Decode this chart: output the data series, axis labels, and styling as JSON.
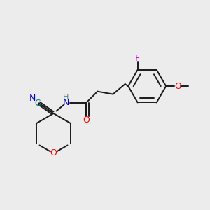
{
  "background_color": "#ececec",
  "bond_color": "#1a1a1a",
  "atom_colors": {
    "N": "#0000cc",
    "O": "#ff0000",
    "F": "#cc00cc",
    "C": "#008080",
    "H": "#5a8080"
  },
  "figsize": [
    3.0,
    3.0
  ],
  "dpi": 100,
  "xlim": [
    0,
    10
  ],
  "ylim": [
    0,
    10
  ]
}
